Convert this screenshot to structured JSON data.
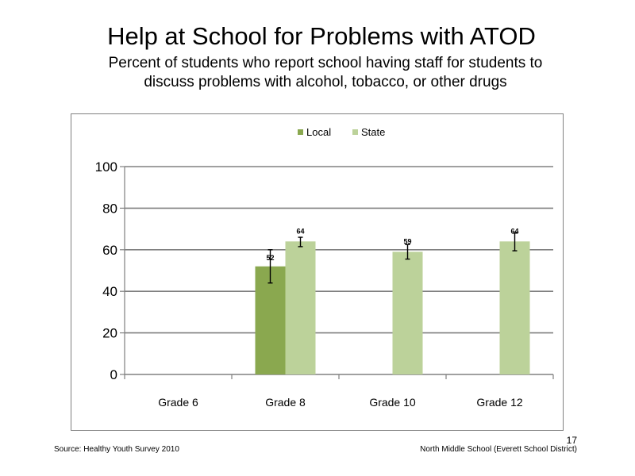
{
  "slide": {
    "title": "Help at School for Problems with ATOD",
    "subtitle_line1": "Percent of students who report school having staff for students to",
    "subtitle_line2": "discuss problems with alcohol, tobacco, or other drugs",
    "source": "Source: Healthy Youth Survey 2010",
    "school": "North Middle School (Everett School District)",
    "page_number": "17"
  },
  "chart_data": {
    "type": "bar",
    "title": "",
    "xlabel": "",
    "ylabel": "",
    "categories": [
      "Grade 6",
      "Grade 8",
      "Grade 10",
      "Grade 12"
    ],
    "series": [
      {
        "name": "Local",
        "color": "#8aa84f",
        "values": [
          null,
          52,
          null,
          null
        ],
        "error_low": [
          null,
          44,
          null,
          null
        ],
        "error_high": [
          null,
          60,
          null,
          null
        ],
        "labels": [
          "",
          "52",
          "",
          ""
        ]
      },
      {
        "name": "State",
        "color": "#bcd29a",
        "values": [
          null,
          64,
          59,
          64
        ],
        "error_low": [
          null,
          61.5,
          55.5,
          59.5
        ],
        "error_high": [
          null,
          66,
          62.5,
          68
        ],
        "labels": [
          "",
          "64",
          "59",
          "64"
        ]
      }
    ],
    "ylim": [
      0,
      100
    ],
    "yticks": [
      "0",
      "20",
      "40",
      "60",
      "80",
      "100"
    ],
    "grid": true,
    "legend_position": "top-center",
    "error_bars": true
  }
}
